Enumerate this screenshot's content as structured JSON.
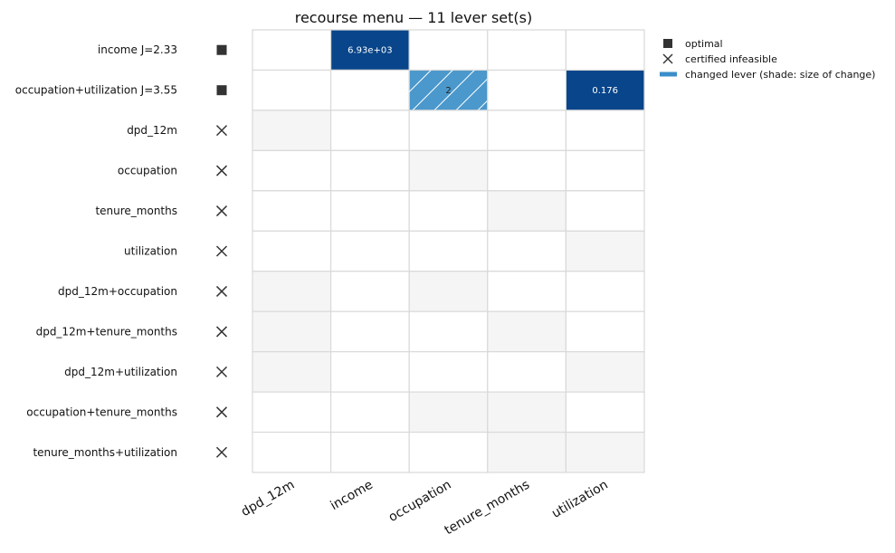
{
  "chart_data": {
    "type": "heatmap",
    "title": "recourse menu — 11 lever set(s)",
    "columns": [
      "dpd_12m",
      "income",
      "occupation",
      "tenure_months",
      "utilization"
    ],
    "rows": [
      {
        "label": "income  J=2.33",
        "status": "optimal",
        "member": [
          false,
          true,
          false,
          false,
          false
        ],
        "values": [
          null,
          "6.93e+03",
          null,
          null,
          null
        ],
        "shade": [
          null,
          1.0,
          null,
          null,
          null
        ]
      },
      {
        "label": "occupation+utilization  J=3.55",
        "status": "optimal",
        "member": [
          false,
          false,
          true,
          false,
          true
        ],
        "values": [
          null,
          null,
          "2",
          null,
          "0.176"
        ],
        "shade": [
          null,
          null,
          0.6,
          null,
          1.0
        ]
      },
      {
        "label": "dpd_12m",
        "status": "infeasible",
        "member": [
          true,
          false,
          false,
          false,
          false
        ],
        "values": [
          null,
          null,
          null,
          null,
          null
        ],
        "shade": [
          null,
          null,
          null,
          null,
          null
        ]
      },
      {
        "label": "occupation",
        "status": "infeasible",
        "member": [
          false,
          false,
          true,
          false,
          false
        ],
        "values": [
          null,
          null,
          null,
          null,
          null
        ],
        "shade": [
          null,
          null,
          null,
          null,
          null
        ]
      },
      {
        "label": "tenure_months",
        "status": "infeasible",
        "member": [
          false,
          false,
          false,
          true,
          false
        ],
        "values": [
          null,
          null,
          null,
          null,
          null
        ],
        "shade": [
          null,
          null,
          null,
          null,
          null
        ]
      },
      {
        "label": "utilization",
        "status": "infeasible",
        "member": [
          false,
          false,
          false,
          false,
          true
        ],
        "values": [
          null,
          null,
          null,
          null,
          null
        ],
        "shade": [
          null,
          null,
          null,
          null,
          null
        ]
      },
      {
        "label": "dpd_12m+occupation",
        "status": "infeasible",
        "member": [
          true,
          false,
          true,
          false,
          false
        ],
        "values": [
          null,
          null,
          null,
          null,
          null
        ],
        "shade": [
          null,
          null,
          null,
          null,
          null
        ]
      },
      {
        "label": "dpd_12m+tenure_months",
        "status": "infeasible",
        "member": [
          true,
          false,
          false,
          true,
          false
        ],
        "values": [
          null,
          null,
          null,
          null,
          null
        ],
        "shade": [
          null,
          null,
          null,
          null,
          null
        ]
      },
      {
        "label": "dpd_12m+utilization",
        "status": "infeasible",
        "member": [
          true,
          false,
          false,
          false,
          true
        ],
        "values": [
          null,
          null,
          null,
          null,
          null
        ],
        "shade": [
          null,
          null,
          null,
          null,
          null
        ]
      },
      {
        "label": "occupation+tenure_months",
        "status": "infeasible",
        "member": [
          false,
          false,
          true,
          true,
          false
        ],
        "values": [
          null,
          null,
          null,
          null,
          null
        ],
        "shade": [
          null,
          null,
          null,
          null,
          null
        ]
      },
      {
        "label": "tenure_months+utilization",
        "status": "infeasible",
        "member": [
          false,
          false,
          false,
          true,
          true
        ],
        "values": [
          null,
          null,
          null,
          null,
          null
        ],
        "shade": [
          null,
          null,
          null,
          null,
          null
        ]
      }
    ],
    "hatched_cells": [
      [
        1,
        2
      ]
    ],
    "legend": {
      "placement": "top-right, outside plot",
      "entries": [
        {
          "marker": "square",
          "label": "optimal"
        },
        {
          "marker": "x",
          "label": "certified infeasible"
        },
        {
          "marker": "bar",
          "label": "changed lever (shade: size of change)"
        }
      ]
    },
    "colors": {
      "dark_shade": "#08458a",
      "mid_shade": "#4a98cc",
      "member_bg": "#f5f5f5",
      "grid": "#d9d9d9",
      "marker": "#333333",
      "legend_bar": "#3a8dc8"
    }
  }
}
